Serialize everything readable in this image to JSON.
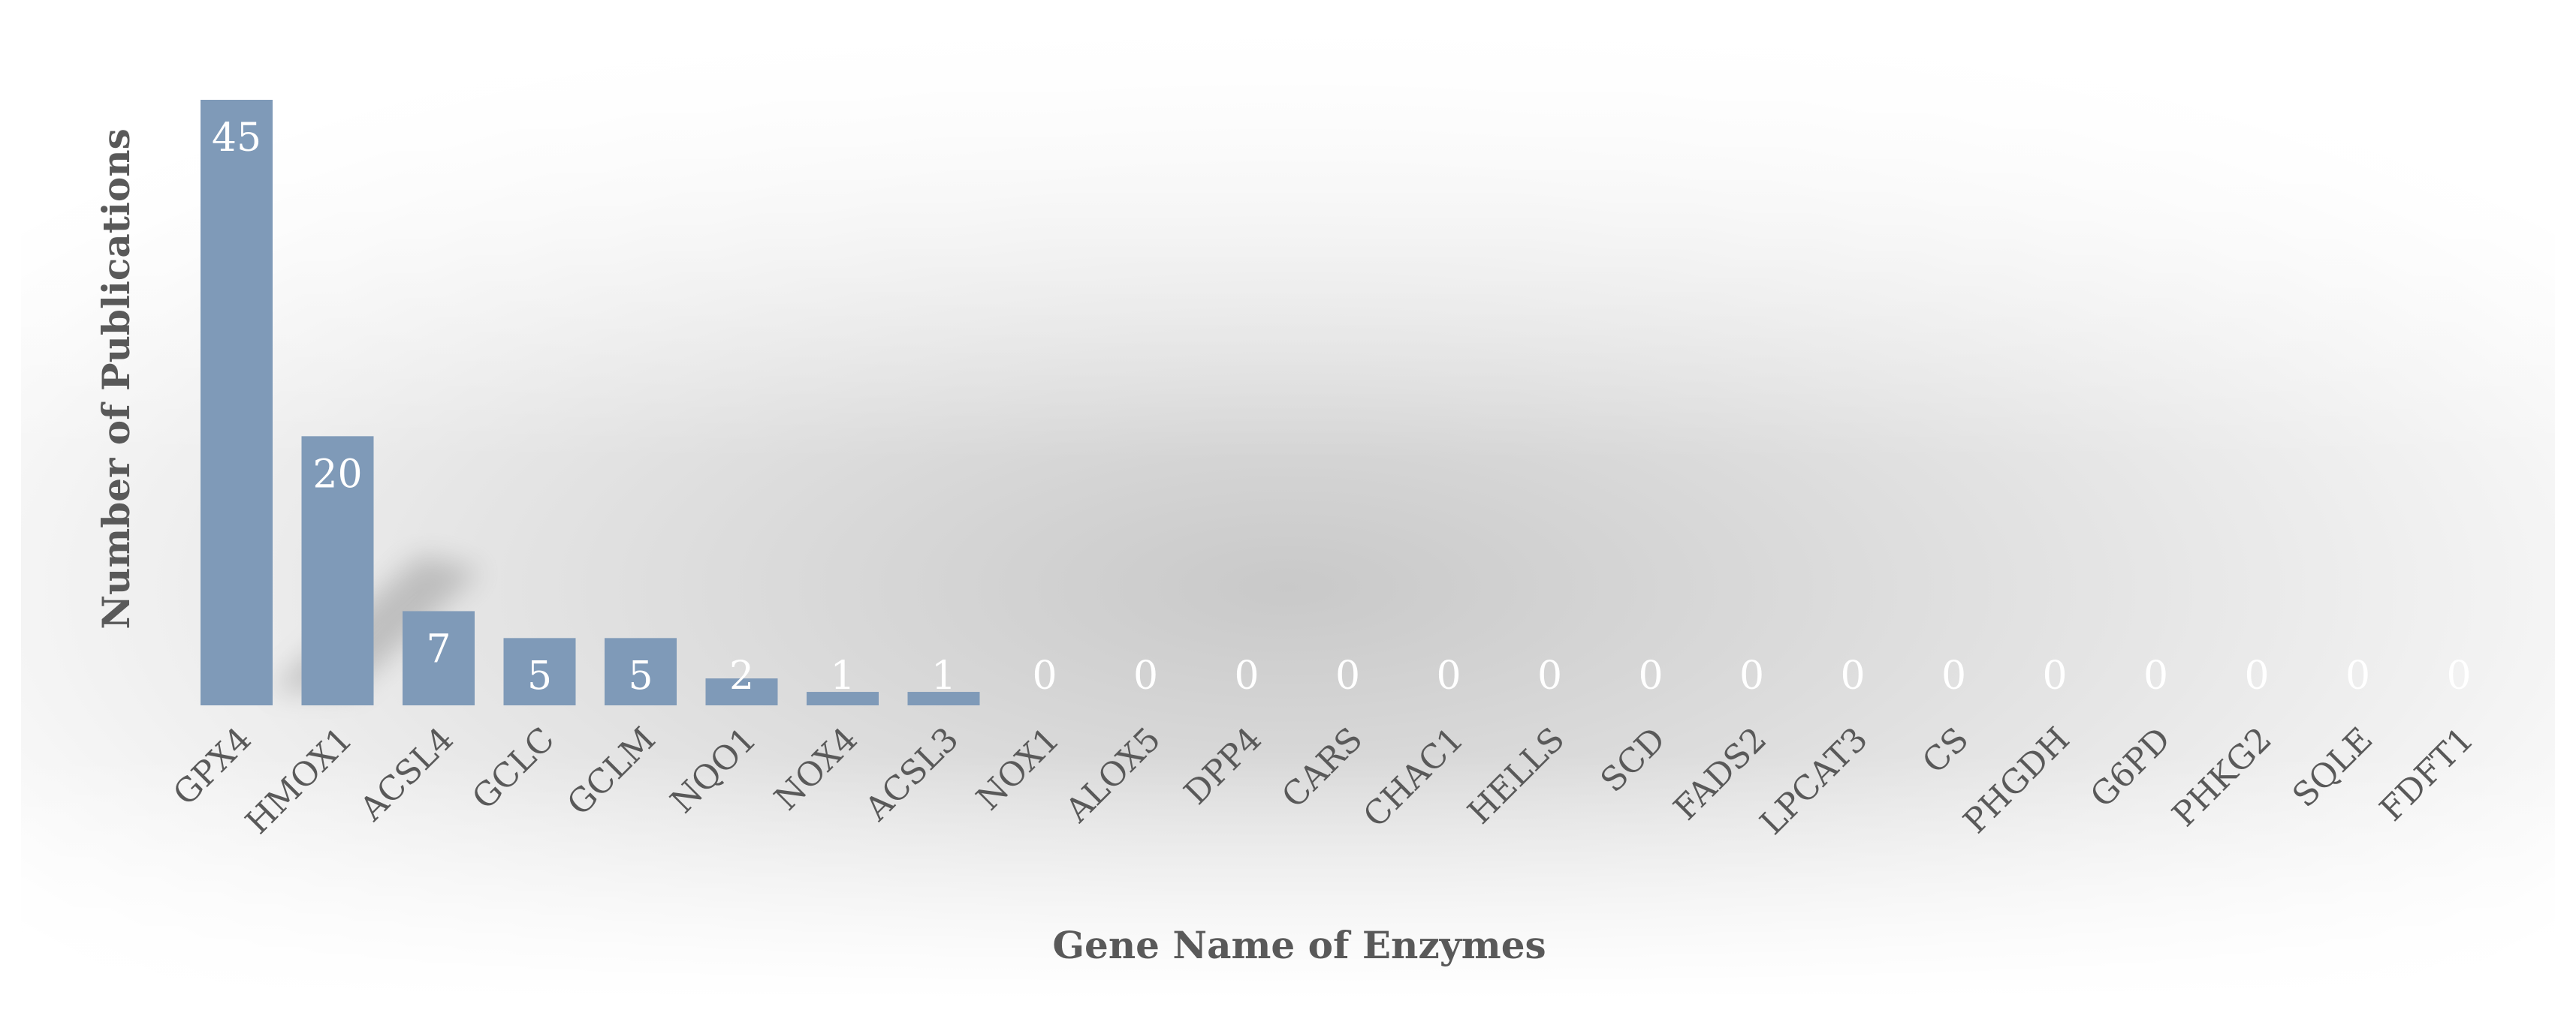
{
  "chart_data": {
    "type": "bar",
    "title": "",
    "xlabel": "Gene Name of Enzymes",
    "ylabel": "Number of Publications",
    "categories": [
      "GPX4",
      "HMOX1",
      "ACSL4",
      "GCLC",
      "GCLM",
      "NQO1",
      "NOX4",
      "ACSL3",
      "NOX1",
      "ALOX5",
      "DPP4",
      "CARS",
      "CHAC1",
      "HELLS",
      "SCD",
      "FADS2",
      "LPCAT3",
      "CS",
      "PHGDH",
      "G6PD",
      "PHKG2",
      "SQLE",
      "FDFT1"
    ],
    "values": [
      45,
      20,
      7,
      5,
      5,
      2,
      1,
      1,
      0,
      0,
      0,
      0,
      0,
      0,
      0,
      0,
      0,
      0,
      0,
      0,
      0,
      0,
      0
    ],
    "ylim": [
      0,
      45
    ],
    "grid": false,
    "legend": "none",
    "data_labels": true
  },
  "colors": {
    "bar": "#7f9ab8",
    "data_label": "#ffffff",
    "axis_label": "#595959",
    "tick_label": "#595959",
    "background_mid": "#cfcfcf"
  }
}
